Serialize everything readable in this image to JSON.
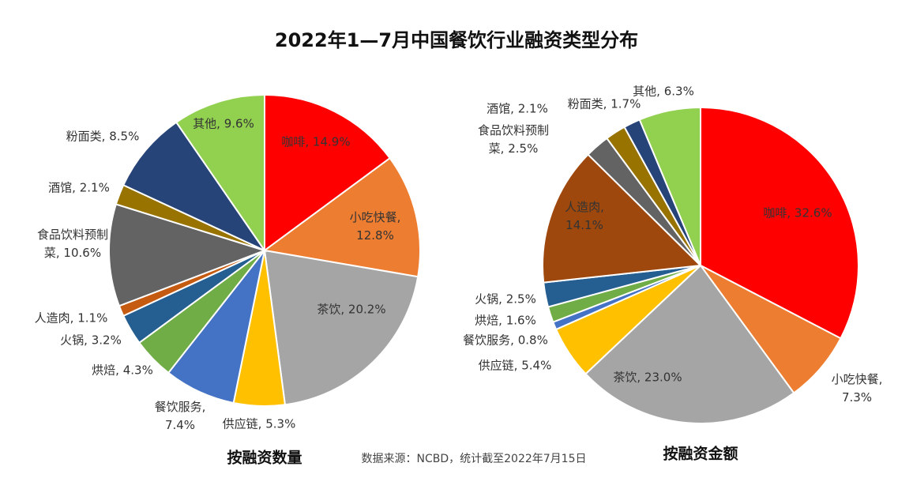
{
  "title": "2022年1—7月中国餐饮行业融资类型分布",
  "source": "数据来源：NCBD，统计截至2022年7月15日",
  "chart_data": [
    {
      "type": "pie",
      "title": "按融资数量",
      "values": [
        14.9,
        12.8,
        20.2,
        5.3,
        7.4,
        4.3,
        3.2,
        1.1,
        10.6,
        2.1,
        8.5,
        9.6
      ],
      "value_labels": [
        "咖啡, 14.9%",
        "小吃快餐,\n12.8%",
        "茶饮, 20.2%",
        "供应链, 5.3%",
        "餐饮服务,\n7.4%",
        "烘焙, 4.3%",
        "火锅, 3.2%",
        "人造肉, 1.1%",
        "食品饮料预制\n菜, 10.6%",
        "酒馆, 2.1%",
        "粉面类, 8.5%",
        "其他, 9.6%"
      ],
      "colors": [
        "#ff0000",
        "#ed7d31",
        "#a5a5a5",
        "#ffc000",
        "#4472c4",
        "#70ad47",
        "#255e91",
        "#c55a11",
        "#636363",
        "#997300",
        "#264478",
        "#92d050"
      ]
    },
    {
      "type": "pie",
      "title": "按融资金额",
      "values": [
        32.6,
        7.3,
        23.0,
        5.4,
        0.8,
        1.6,
        2.5,
        14.1,
        2.5,
        2.1,
        1.7,
        6.3
      ],
      "value_labels": [
        "咖啡, 32.6%",
        "小吃快餐,\n7.3%",
        "茶饮, 23.0%",
        "供应链, 5.4%",
        "餐饮服务, 0.8%",
        "烘焙, 1.6%",
        "火锅, 2.5%",
        "人造肉,\n14.1%",
        "食品饮料预制\n菜, 2.5%",
        "酒馆, 2.1%",
        "粉面类, 1.7%",
        "其他, 6.3%"
      ],
      "colors": [
        "#ff0000",
        "#ed7d31",
        "#a5a5a5",
        "#ffc000",
        "#4472c4",
        "#70ad47",
        "#255e91",
        "#9e480e",
        "#636363",
        "#997300",
        "#264478",
        "#92d050"
      ]
    }
  ]
}
